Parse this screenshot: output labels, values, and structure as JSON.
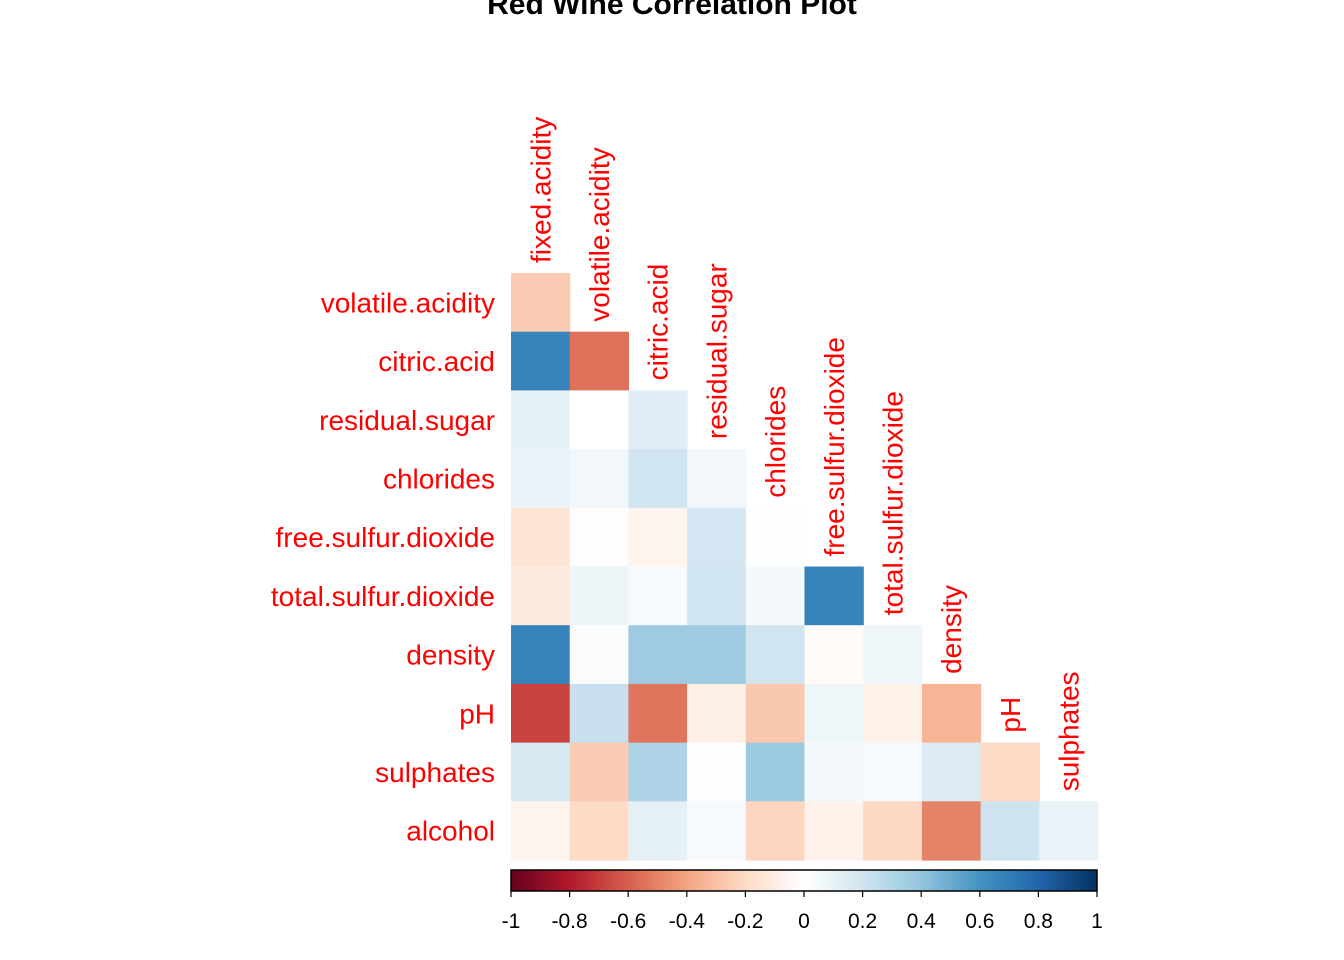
{
  "chart_data": {
    "type": "heatmap",
    "title": "Red Wine Correlation Plot",
    "layout": "lower-triangle",
    "row_labels": [
      "volatile.acidity",
      "citric.acid",
      "residual.sugar",
      "chlorides",
      "free.sulfur.dioxide",
      "total.sulfur.dioxide",
      "density",
      "pH",
      "sulphates",
      "alcohol"
    ],
    "col_labels": [
      "fixed.acidity",
      "volatile.acidity",
      "citric.acid",
      "residual.sugar",
      "chlorides",
      "free.sulfur.dioxide",
      "total.sulfur.dioxide",
      "density",
      "pH",
      "sulphates"
    ],
    "values": [
      [
        -0.26
      ],
      [
        0.67,
        -0.55
      ],
      [
        0.11,
        0.0,
        0.14
      ],
      [
        0.09,
        0.06,
        0.2,
        0.06
      ],
      [
        -0.15,
        -0.01,
        -0.06,
        0.19,
        0.01
      ],
      [
        -0.11,
        0.08,
        0.04,
        0.2,
        0.05,
        0.67
      ],
      [
        0.67,
        0.02,
        0.36,
        0.36,
        0.2,
        -0.02,
        0.07
      ],
      [
        -0.68,
        0.23,
        -0.54,
        -0.09,
        -0.27,
        0.07,
        -0.07,
        -0.34
      ],
      [
        0.18,
        -0.26,
        0.31,
        0.01,
        0.37,
        0.05,
        0.04,
        0.15,
        -0.2
      ],
      [
        -0.06,
        -0.2,
        0.11,
        0.04,
        -0.22,
        -0.07,
        -0.21,
        -0.5,
        0.21,
        0.09
      ]
    ],
    "colorbar": {
      "range": [
        -1,
        1
      ],
      "ticks": [
        "-1",
        "-0.8",
        "-0.6",
        "-0.4",
        "-0.2",
        "0",
        "0.2",
        "0.4",
        "0.6",
        "0.8",
        "1"
      ],
      "palette": [
        "#67001F",
        "#B2182B",
        "#D6604D",
        "#F4A582",
        "#FDDBC7",
        "#FFFFFF",
        "#D1E5F0",
        "#92C5DE",
        "#4393C3",
        "#2166AC",
        "#053061"
      ]
    },
    "label_color": "#FF0000"
  }
}
